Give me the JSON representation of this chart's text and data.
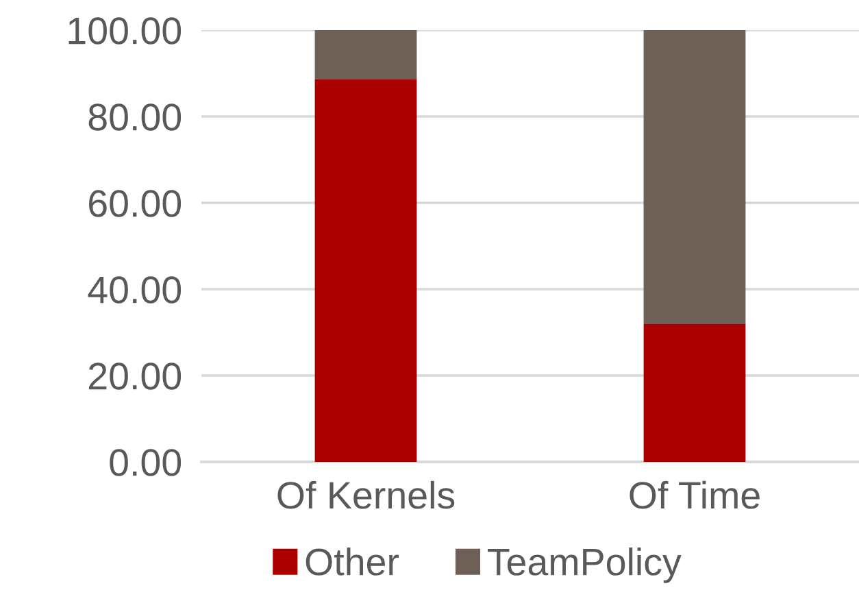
{
  "chart_data": {
    "type": "bar",
    "stacked": true,
    "categories": [
      "Of Kernels",
      "Of Time"
    ],
    "series": [
      {
        "name": "Other",
        "color": "#aa0000",
        "values": [
          88.7,
          31.9
        ]
      },
      {
        "name": "TeamPolicy",
        "color": "#6f6057",
        "values": [
          11.3,
          68.1
        ]
      }
    ],
    "ylim": [
      0,
      100
    ],
    "yticks": [
      {
        "value": 0,
        "label": "0.00"
      },
      {
        "value": 20,
        "label": "20.00"
      },
      {
        "value": 40,
        "label": "40.00"
      },
      {
        "value": 60,
        "label": "60.00"
      },
      {
        "value": 80,
        "label": "80.00"
      },
      {
        "value": 100,
        "label": "100.00"
      }
    ],
    "grid": "y",
    "legend": "bottom"
  }
}
